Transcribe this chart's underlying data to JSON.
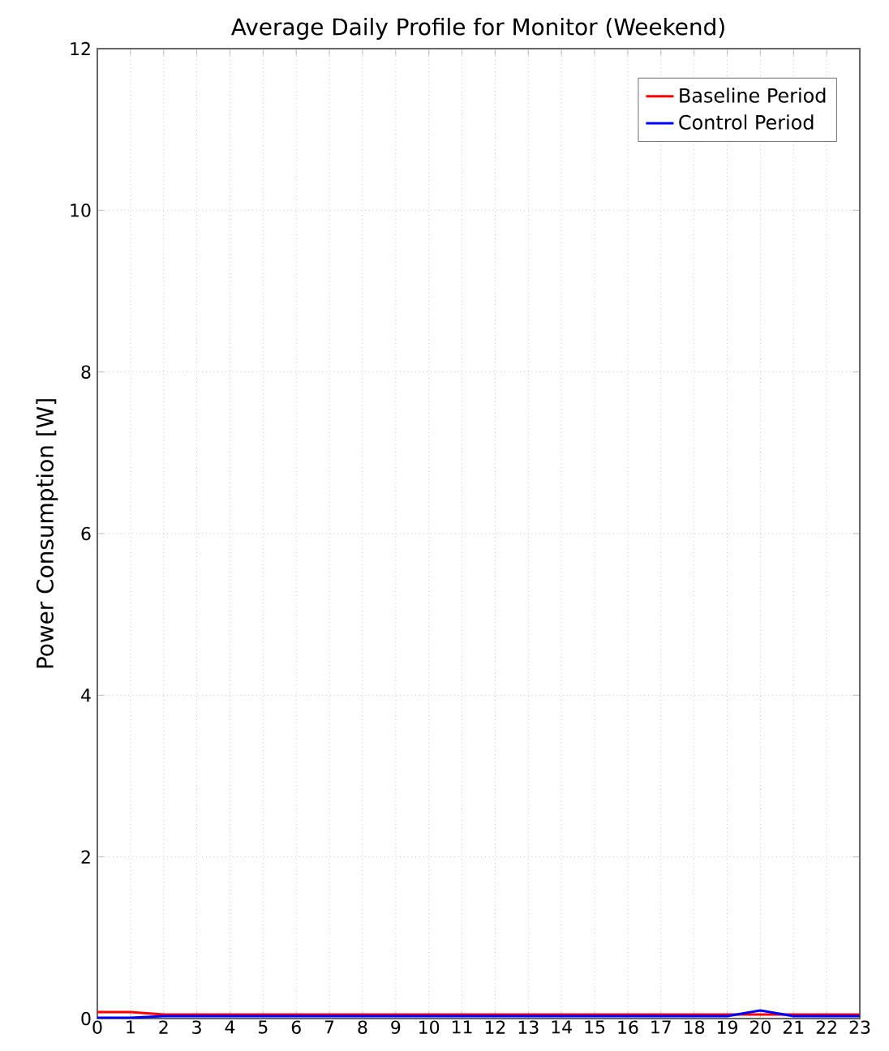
{
  "chart_data": {
    "type": "line",
    "title": "Average Daily Profile for Monitor (Weekend)",
    "ylabel": "Power Consumption [W]",
    "x": [
      0,
      1,
      2,
      3,
      4,
      5,
      6,
      7,
      8,
      9,
      10,
      11,
      12,
      13,
      14,
      15,
      16,
      17,
      18,
      19,
      20,
      21,
      22,
      23
    ],
    "series": [
      {
        "name": "Baseline Period",
        "color": "#ff0000",
        "values": [
          0.08,
          0.08,
          0.05,
          0.05,
          0.05,
          0.05,
          0.05,
          0.05,
          0.05,
          0.05,
          0.05,
          0.05,
          0.05,
          0.05,
          0.05,
          0.05,
          0.05,
          0.05,
          0.05,
          0.05,
          0.05,
          0.05,
          0.05,
          0.05
        ]
      },
      {
        "name": "Control Period",
        "color": "#0000ff",
        "values": [
          0.01,
          0.01,
          0.03,
          0.03,
          0.03,
          0.03,
          0.03,
          0.03,
          0.03,
          0.03,
          0.03,
          0.03,
          0.03,
          0.03,
          0.03,
          0.03,
          0.03,
          0.03,
          0.03,
          0.03,
          0.1,
          0.03,
          0.03,
          0.03
        ]
      }
    ],
    "xlim": [
      0,
      23
    ],
    "ylim": [
      0,
      12
    ],
    "xticks": [
      0,
      1,
      2,
      3,
      4,
      5,
      6,
      7,
      8,
      9,
      10,
      11,
      12,
      13,
      14,
      15,
      16,
      17,
      18,
      19,
      20,
      21,
      22,
      23
    ],
    "yticks": [
      0,
      2,
      4,
      6,
      8,
      10,
      12
    ],
    "grid": true,
    "legend": "top right"
  }
}
